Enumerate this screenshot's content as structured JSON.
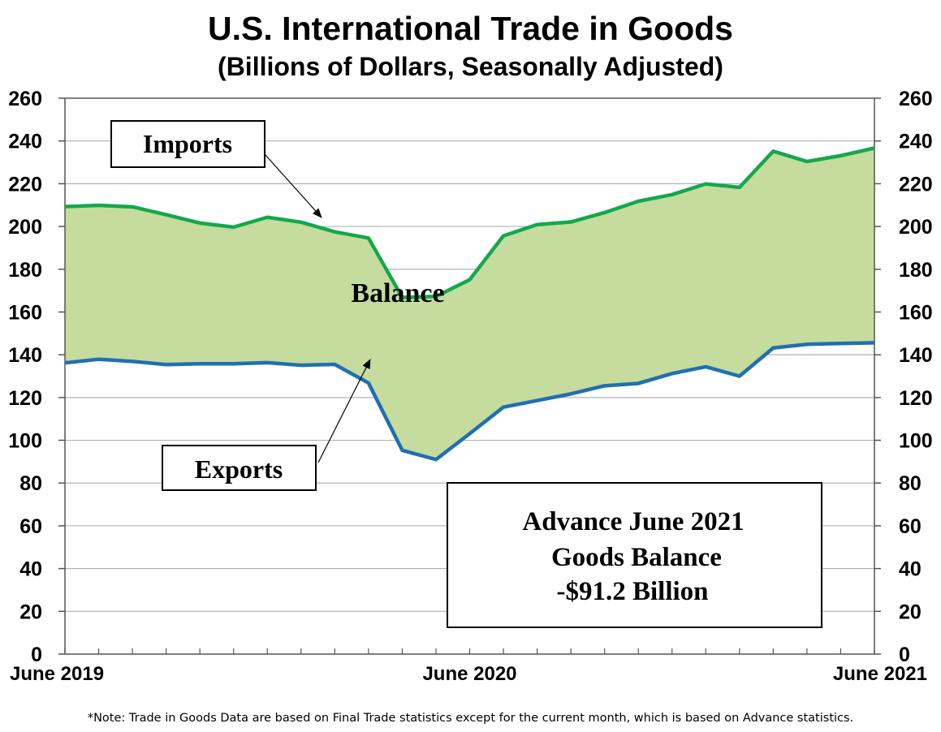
{
  "chart_data": {
    "type": "area",
    "title": "U.S. International Trade in Goods",
    "subtitle": "(Billions of Dollars, Seasonally Adjusted)",
    "x_tick_labels": [
      "June 2019",
      "June 2020",
      "June 2021"
    ],
    "x_tick_index": [
      0,
      12,
      24
    ],
    "months": [
      "Jun 2019",
      "Jul 2019",
      "Aug 2019",
      "Sep 2019",
      "Oct 2019",
      "Nov 2019",
      "Dec 2019",
      "Jan 2020",
      "Feb 2020",
      "Mar 2020",
      "Apr 2020",
      "May 2020",
      "Jun 2020",
      "Jul 2020",
      "Aug 2020",
      "Sep 2020",
      "Oct 2020",
      "Nov 2020",
      "Dec 2020",
      "Jan 2021",
      "Feb 2021",
      "Mar 2021",
      "Apr 2021",
      "May 2021",
      "Jun 2021"
    ],
    "ylim": [
      0,
      260
    ],
    "y_ticks": [
      0,
      20,
      40,
      60,
      80,
      100,
      120,
      140,
      160,
      180,
      200,
      220,
      240,
      260
    ],
    "series": [
      {
        "name": "Imports",
        "color": "#14a84b",
        "values": [
          209.3,
          209.9,
          209.2,
          205.5,
          201.6,
          199.7,
          204.3,
          202.0,
          197.5,
          194.6,
          166.8,
          167.3,
          175.1,
          195.6,
          200.9,
          202.1,
          206.5,
          211.8,
          214.9,
          219.9,
          218.3,
          235.2,
          230.4,
          233.1,
          236.7
        ]
      },
      {
        "name": "Exports",
        "color": "#1f6fb5",
        "values": [
          136.2,
          137.9,
          136.9,
          135.4,
          135.8,
          135.8,
          136.3,
          135.1,
          135.5,
          126.8,
          95.3,
          91.0,
          103.1,
          115.5,
          118.6,
          121.7,
          125.5,
          126.6,
          131.2,
          134.4,
          130.0,
          143.2,
          144.9,
          145.3,
          145.6
        ]
      }
    ],
    "fill_color": "#c5dc9e",
    "annotations": {
      "imports_label": "Imports",
      "exports_label": "Exports",
      "balance_label": "Balance",
      "box_line1": "Advance June 2021",
      "box_line2": "Goods Balance",
      "box_line3": "-$91.2 Billion"
    }
  },
  "footnote": "*Note: Trade in Goods Data are based on Final Trade statistics except for the current month, which is based on Advance statistics."
}
